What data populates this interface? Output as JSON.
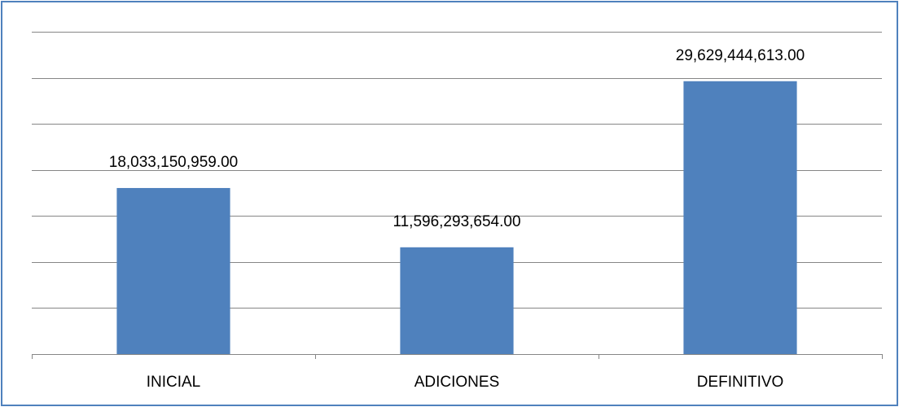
{
  "chart_data": {
    "type": "bar",
    "title": "",
    "xlabel": "",
    "ylabel": "",
    "categories": [
      "INICIAL",
      "ADICIONES",
      "DEFINITIVO"
    ],
    "values": [
      18033150959.0,
      11596293654.0,
      29629444613.0
    ],
    "data_labels": [
      "18,033,150,959.00",
      "11,596,293,654.00",
      "29,629,444,613.00"
    ],
    "ylim": [
      0,
      35000000000
    ],
    "ytick_step": 5000000000,
    "grid": true,
    "legend": "none",
    "bar_color": "#4f81bd",
    "border_color": "#4f81bd"
  }
}
